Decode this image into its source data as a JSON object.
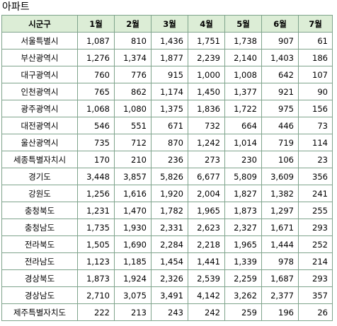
{
  "title": "아파트",
  "table": {
    "headers": [
      "시군구",
      "1월",
      "2월",
      "3월",
      "4월",
      "5월",
      "6월",
      "7월"
    ],
    "rows": [
      [
        "서울특별시",
        "1,087",
        "810",
        "1,436",
        "1,751",
        "1,738",
        "907",
        "61"
      ],
      [
        "부산광역시",
        "1,276",
        "1,374",
        "1,877",
        "2,239",
        "2,140",
        "1,403",
        "186"
      ],
      [
        "대구광역시",
        "760",
        "776",
        "915",
        "1,000",
        "1,008",
        "642",
        "107"
      ],
      [
        "인천광역시",
        "765",
        "862",
        "1,174",
        "1,450",
        "1,377",
        "921",
        "90"
      ],
      [
        "광주광역시",
        "1,068",
        "1,080",
        "1,375",
        "1,836",
        "1,722",
        "975",
        "156"
      ],
      [
        "대전광역시",
        "546",
        "551",
        "671",
        "732",
        "664",
        "446",
        "73"
      ],
      [
        "울산광역시",
        "735",
        "712",
        "870",
        "1,242",
        "1,014",
        "719",
        "114"
      ],
      [
        "세종특별자치시",
        "170",
        "210",
        "236",
        "273",
        "230",
        "106",
        "23"
      ],
      [
        "경기도",
        "3,448",
        "3,857",
        "5,826",
        "6,677",
        "5,809",
        "3,609",
        "356"
      ],
      [
        "강원도",
        "1,256",
        "1,616",
        "1,920",
        "2,004",
        "1,827",
        "1,382",
        "241"
      ],
      [
        "충청북도",
        "1,231",
        "1,470",
        "1,782",
        "1,965",
        "1,873",
        "1,297",
        "255"
      ],
      [
        "충청남도",
        "1,735",
        "1,930",
        "2,331",
        "2,623",
        "2,327",
        "1,671",
        "293"
      ],
      [
        "전라북도",
        "1,505",
        "1,690",
        "2,284",
        "2,218",
        "1,965",
        "1,444",
        "252"
      ],
      [
        "전라남도",
        "1,123",
        "1,185",
        "1,454",
        "1,441",
        "1,339",
        "978",
        "214"
      ],
      [
        "경상북도",
        "1,873",
        "1,924",
        "2,326",
        "2,539",
        "2,259",
        "1,687",
        "293"
      ],
      [
        "경상남도",
        "2,710",
        "3,075",
        "3,491",
        "4,142",
        "3,262",
        "2,377",
        "357"
      ],
      [
        "제주특별자치도",
        "222",
        "213",
        "243",
        "242",
        "259",
        "196",
        "26"
      ]
    ]
  }
}
